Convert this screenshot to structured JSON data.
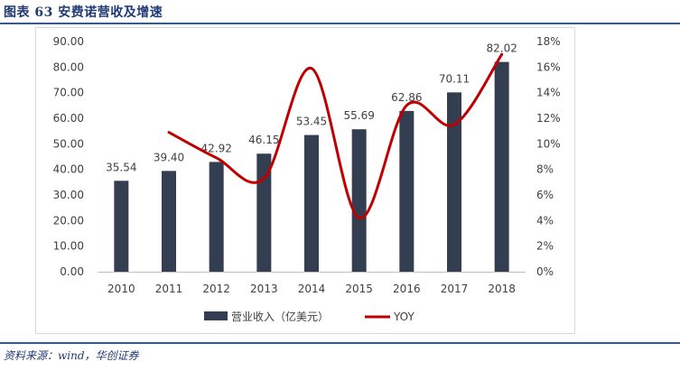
{
  "figure": {
    "title": "图表 63   安费诺营收及增速",
    "source": "资料来源：wind，华创证券"
  },
  "colors": {
    "bar": "#333f50",
    "line": "#c00000",
    "axis": "#bfbfbf",
    "text": "#404040",
    "accent": "#2b5aa8"
  },
  "chart_data": {
    "type": "bar",
    "categories": [
      "2010",
      "2011",
      "2012",
      "2013",
      "2014",
      "2015",
      "2016",
      "2017",
      "2018"
    ],
    "series": [
      {
        "name": "营业收入（亿美元）",
        "type": "bar",
        "axis": "left",
        "values": [
          35.54,
          39.4,
          42.92,
          46.15,
          53.45,
          55.69,
          62.86,
          70.11,
          82.02
        ],
        "value_labels": [
          "35.54",
          "39.40",
          "42.92",
          "46.15",
          "53.45",
          "55.69",
          "62.86",
          "70.11",
          "82.02"
        ]
      },
      {
        "name": "YOY",
        "type": "line",
        "axis": "right",
        "smooth": true,
        "values": [
          null,
          10.9,
          8.9,
          7.3,
          15.9,
          4.2,
          13.0,
          11.5,
          17.0
        ]
      }
    ],
    "y_left": {
      "min": 0,
      "max": 90,
      "step": 10,
      "tick_labels": [
        "0.00",
        "10.00",
        "20.00",
        "30.00",
        "40.00",
        "50.00",
        "60.00",
        "70.00",
        "80.00",
        "90.00"
      ]
    },
    "y_right": {
      "min": 0,
      "max": 18,
      "step": 2,
      "tick_labels": [
        "0%",
        "2%",
        "4%",
        "6%",
        "8%",
        "10%",
        "12%",
        "14%",
        "16%",
        "18%"
      ]
    },
    "grid": false,
    "legend": {
      "position": "bottom",
      "items": [
        {
          "label": "营业收入（亿美元）",
          "kind": "bar"
        },
        {
          "label": "YOY",
          "kind": "line"
        }
      ]
    }
  }
}
